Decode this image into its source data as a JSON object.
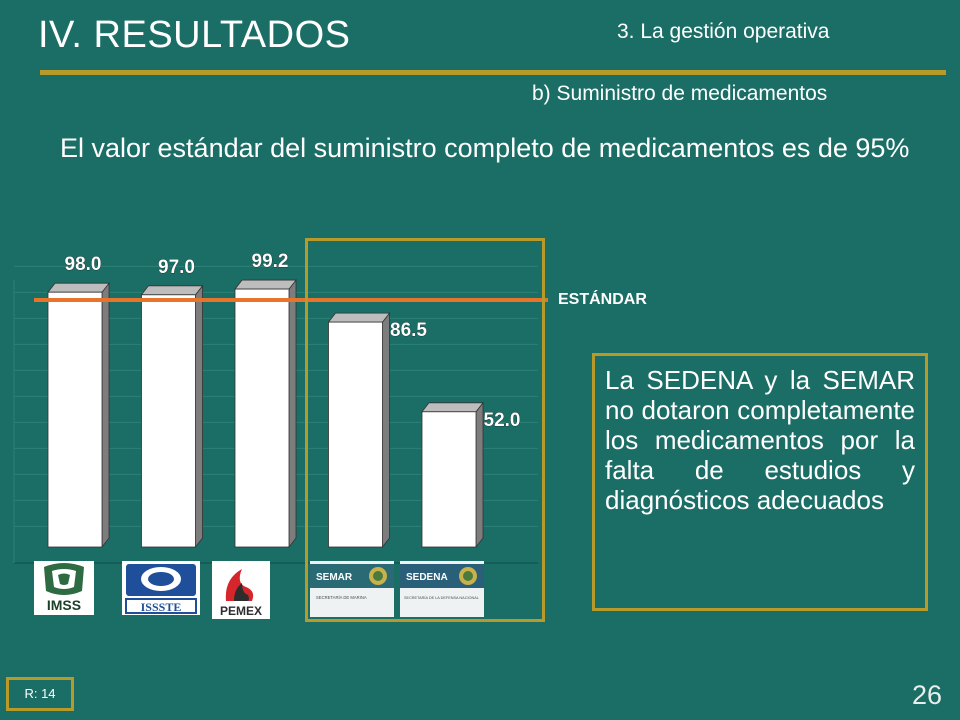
{
  "header": {
    "title": "IV. RESULTADOS",
    "section": "3. La gestión operativa",
    "subsection": "b) Suministro de medicamentos"
  },
  "lead_text": "El valor estándar del suministro completo de medicamentos es de 95%",
  "standard_label": "ESTÁNDAR",
  "note": "La SEDENA y la SEMAR no dotaron completamente los medicamentos por la falta de estudios y diagnósticos adecuados",
  "logos": [
    {
      "name": "IMSS",
      "text": "IMSS"
    },
    {
      "name": "ISSSTE",
      "text": "ISSSTE"
    },
    {
      "name": "PEMEX",
      "text": "PEMEX"
    },
    {
      "name": "SEMAR",
      "text": "SEMAR",
      "subtext": "SECRETARÍA DE MARINA"
    },
    {
      "name": "SEDENA",
      "text": "SEDENA",
      "subtext": "SECRETARÍA DE LA DEFENSA NACIONAL"
    }
  ],
  "footer": {
    "ref": "R: 14",
    "page": "26"
  },
  "colors": {
    "background": "#1b6e66",
    "accent_gold": "#b89a2a",
    "standard_line": "#e8742a",
    "bar_face": "#ffffff"
  },
  "chart_data": {
    "type": "bar",
    "categories": [
      "IMSS",
      "ISSSTE",
      "PEMEX",
      "SEMAR",
      "SEDENA"
    ],
    "values": [
      98.0,
      97.0,
      99.2,
      86.5,
      52.0
    ],
    "value_labels": [
      "98.0",
      "97.0",
      "99.2",
      "86.5",
      "52.0"
    ],
    "reference_line": {
      "label": "ESTÁNDAR",
      "value": 95
    },
    "style": "3d-bars",
    "grid": true
  }
}
